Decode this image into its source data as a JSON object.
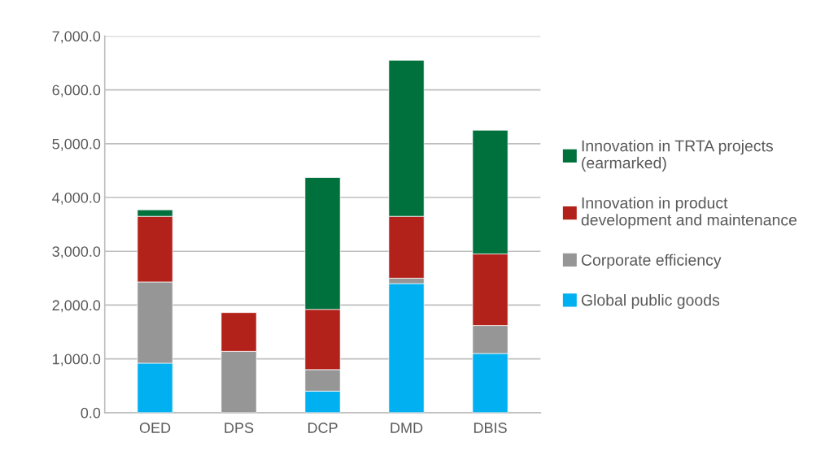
{
  "chart_data": {
    "type": "bar",
    "stacked": true,
    "categories": [
      "OED",
      "DPS",
      "DCP",
      "DMD",
      "DBIS"
    ],
    "series": [
      {
        "name": "Global public goods",
        "color": "#00b0f0",
        "values": [
          920,
          null,
          400,
          2400,
          1100
        ]
      },
      {
        "name": "Corporate efficiency",
        "color": "#969696",
        "values": [
          1510,
          1140,
          400,
          100,
          520
        ]
      },
      {
        "name": "Innovation in product development and maintenance",
        "color": "#b3221a",
        "values": [
          1220,
          720,
          1120,
          1150,
          1330
        ]
      },
      {
        "name": "Innovation in TRTA projects (earmarked)",
        "color": "#00703c",
        "values": [
          120,
          null,
          2450,
          2900,
          2300
        ]
      }
    ],
    "ylim": [
      0,
      7000
    ],
    "yticks": [
      {
        "value": 0,
        "label": "0.0"
      },
      {
        "value": 1000,
        "label": "1,000.0"
      },
      {
        "value": 2000,
        "label": "2,000.0"
      },
      {
        "value": 3000,
        "label": "3,000.0"
      },
      {
        "value": 4000,
        "label": "4,000.0"
      },
      {
        "value": 5000,
        "label": "5,000.0"
      },
      {
        "value": 6000,
        "label": "6,000.0"
      },
      {
        "value": 7000,
        "label": "7,000.0"
      }
    ],
    "grid": "y",
    "legend": "right"
  }
}
